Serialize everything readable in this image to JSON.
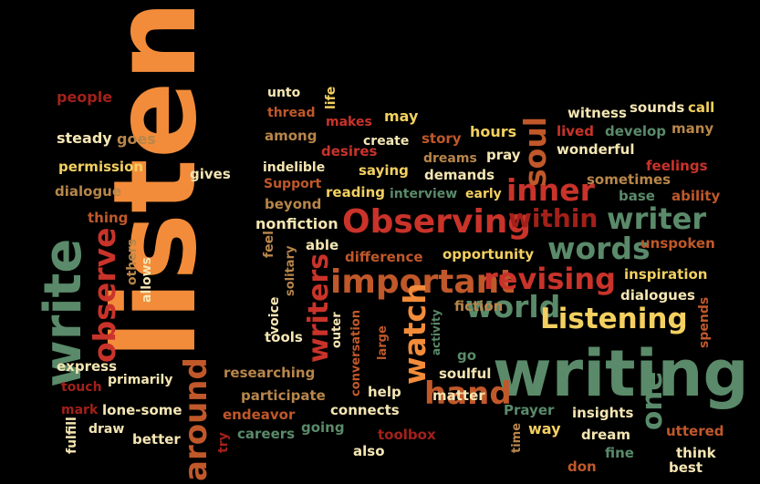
{
  "colors": {
    "background": "#000000",
    "orange": "#f28c3a",
    "dark_red": "#a3201a",
    "red": "#c9332a",
    "rust": "#c0582a",
    "green": "#5a8a6a",
    "light_green": "#7aa384",
    "cream": "#f5e6b3",
    "yellow": "#f3d060",
    "tan": "#b8864a"
  },
  "words": [
    {
      "text": "listen",
      "color": "orange",
      "orientation": "vertical"
    },
    {
      "text": "write",
      "color": "green",
      "orientation": "vertical"
    },
    {
      "text": "observe",
      "color": "red",
      "orientation": "vertical"
    },
    {
      "text": "around",
      "color": "rust",
      "orientation": "vertical"
    },
    {
      "text": "writing",
      "color": "green",
      "orientation": "horizontal"
    },
    {
      "text": "Observing",
      "color": "red",
      "orientation": "horizontal"
    },
    {
      "text": "important",
      "color": "rust",
      "orientation": "horizontal"
    },
    {
      "text": "writers",
      "color": "red",
      "orientation": "vertical"
    },
    {
      "text": "watch",
      "color": "orange",
      "orientation": "vertical"
    },
    {
      "text": "hand",
      "color": "rust",
      "orientation": "horizontal"
    },
    {
      "text": "world",
      "color": "green",
      "orientation": "horizontal"
    },
    {
      "text": "Listening",
      "color": "yellow",
      "orientation": "horizontal"
    },
    {
      "text": "revising",
      "color": "red",
      "orientation": "horizontal"
    },
    {
      "text": "words",
      "color": "green",
      "orientation": "horizontal"
    },
    {
      "text": "writer",
      "color": "green",
      "orientation": "horizontal"
    },
    {
      "text": "within",
      "color": "dark_red",
      "orientation": "horizontal"
    },
    {
      "text": "inner",
      "color": "red",
      "orientation": "horizontal"
    },
    {
      "text": "soul",
      "color": "rust",
      "orientation": "vertical"
    },
    {
      "text": "one",
      "color": "green",
      "orientation": "vertical"
    },
    {
      "text": "people",
      "color": "dark_red",
      "orientation": "horizontal"
    },
    {
      "text": "steady",
      "color": "cream",
      "orientation": "horizontal"
    },
    {
      "text": "goes",
      "color": "tan",
      "orientation": "horizontal"
    },
    {
      "text": "permission",
      "color": "yellow",
      "orientation": "horizontal"
    },
    {
      "text": "dialogue",
      "color": "tan",
      "orientation": "horizontal"
    },
    {
      "text": "thing",
      "color": "rust",
      "orientation": "horizontal"
    },
    {
      "text": "others",
      "color": "tan",
      "orientation": "vertical"
    },
    {
      "text": "allows",
      "color": "cream",
      "orientation": "vertical"
    },
    {
      "text": "express",
      "color": "cream",
      "orientation": "horizontal"
    },
    {
      "text": "touch",
      "color": "dark_red",
      "orientation": "horizontal"
    },
    {
      "text": "primarily",
      "color": "cream",
      "orientation": "horizontal"
    },
    {
      "text": "mark",
      "color": "dark_red",
      "orientation": "horizontal"
    },
    {
      "text": "lone-some",
      "color": "cream",
      "orientation": "horizontal"
    },
    {
      "text": "draw",
      "color": "cream",
      "orientation": "horizontal"
    },
    {
      "text": "fulfill",
      "color": "cream",
      "orientation": "vertical"
    },
    {
      "text": "better",
      "color": "cream",
      "orientation": "horizontal"
    },
    {
      "text": "gives",
      "color": "cream",
      "orientation": "horizontal"
    },
    {
      "text": "unto",
      "color": "cream",
      "orientation": "horizontal"
    },
    {
      "text": "life",
      "color": "yellow",
      "orientation": "vertical"
    },
    {
      "text": "thread",
      "color": "rust",
      "orientation": "horizontal"
    },
    {
      "text": "among",
      "color": "tan",
      "orientation": "horizontal"
    },
    {
      "text": "makes",
      "color": "red",
      "orientation": "horizontal"
    },
    {
      "text": "may",
      "color": "yellow",
      "orientation": "horizontal"
    },
    {
      "text": "desires",
      "color": "red",
      "orientation": "horizontal"
    },
    {
      "text": "create",
      "color": "cream",
      "orientation": "horizontal"
    },
    {
      "text": "story",
      "color": "rust",
      "orientation": "horizontal"
    },
    {
      "text": "hours",
      "color": "yellow",
      "orientation": "horizontal"
    },
    {
      "text": "indelible",
      "color": "cream",
      "orientation": "horizontal"
    },
    {
      "text": "saying",
      "color": "yellow",
      "orientation": "horizontal"
    },
    {
      "text": "dreams",
      "color": "tan",
      "orientation": "horizontal"
    },
    {
      "text": "pray",
      "color": "cream",
      "orientation": "horizontal"
    },
    {
      "text": "Support",
      "color": "rust",
      "orientation": "horizontal"
    },
    {
      "text": "demands",
      "color": "cream",
      "orientation": "horizontal"
    },
    {
      "text": "beyond",
      "color": "tan",
      "orientation": "horizontal"
    },
    {
      "text": "reading",
      "color": "yellow",
      "orientation": "horizontal"
    },
    {
      "text": "interview",
      "color": "green",
      "orientation": "horizontal"
    },
    {
      "text": "early",
      "color": "yellow",
      "orientation": "horizontal"
    },
    {
      "text": "nonfiction",
      "color": "cream",
      "orientation": "horizontal"
    },
    {
      "text": "feel",
      "color": "tan",
      "orientation": "vertical"
    },
    {
      "text": "solitary",
      "color": "tan",
      "orientation": "vertical"
    },
    {
      "text": "able",
      "color": "cream",
      "orientation": "horizontal"
    },
    {
      "text": "difference",
      "color": "rust",
      "orientation": "horizontal"
    },
    {
      "text": "opportunity",
      "color": "yellow",
      "orientation": "horizontal"
    },
    {
      "text": "voice",
      "color": "cream",
      "orientation": "vertical"
    },
    {
      "text": "tools",
      "color": "cream",
      "orientation": "horizontal"
    },
    {
      "text": "outer",
      "color": "cream",
      "orientation": "vertical"
    },
    {
      "text": "conversation",
      "color": "rust",
      "orientation": "vertical"
    },
    {
      "text": "large",
      "color": "rust",
      "orientation": "vertical"
    },
    {
      "text": "activity",
      "color": "green",
      "orientation": "vertical"
    },
    {
      "text": "fiction",
      "color": "tan",
      "orientation": "horizontal"
    },
    {
      "text": "go",
      "color": "green",
      "orientation": "horizontal"
    },
    {
      "text": "researching",
      "color": "tan",
      "orientation": "horizontal"
    },
    {
      "text": "participate",
      "color": "tan",
      "orientation": "horizontal"
    },
    {
      "text": "help",
      "color": "cream",
      "orientation": "horizontal"
    },
    {
      "text": "soulful",
      "color": "cream",
      "orientation": "horizontal"
    },
    {
      "text": "matter",
      "color": "cream",
      "orientation": "horizontal"
    },
    {
      "text": "endeavor",
      "color": "rust",
      "orientation": "horizontal"
    },
    {
      "text": "try",
      "color": "dark_red",
      "orientation": "vertical"
    },
    {
      "text": "careers",
      "color": "green",
      "orientation": "horizontal"
    },
    {
      "text": "going",
      "color": "green",
      "orientation": "horizontal"
    },
    {
      "text": "connects",
      "color": "cream",
      "orientation": "horizontal"
    },
    {
      "text": "also",
      "color": "cream",
      "orientation": "horizontal"
    },
    {
      "text": "toolbox",
      "color": "dark_red",
      "orientation": "horizontal"
    },
    {
      "text": "Prayer",
      "color": "green",
      "orientation": "horizontal"
    },
    {
      "text": "time",
      "color": "tan",
      "orientation": "vertical"
    },
    {
      "text": "way",
      "color": "yellow",
      "orientation": "horizontal"
    },
    {
      "text": "witness",
      "color": "cream",
      "orientation": "horizontal"
    },
    {
      "text": "sounds",
      "color": "cream",
      "orientation": "horizontal"
    },
    {
      "text": "call",
      "color": "yellow",
      "orientation": "horizontal"
    },
    {
      "text": "lived",
      "color": "red",
      "orientation": "horizontal"
    },
    {
      "text": "develop",
      "color": "green",
      "orientation": "horizontal"
    },
    {
      "text": "many",
      "color": "tan",
      "orientation": "horizontal"
    },
    {
      "text": "wonderful",
      "color": "cream",
      "orientation": "horizontal"
    },
    {
      "text": "sometimes",
      "color": "tan",
      "orientation": "horizontal"
    },
    {
      "text": "feelings",
      "color": "red",
      "orientation": "horizontal"
    },
    {
      "text": "base",
      "color": "green",
      "orientation": "horizontal"
    },
    {
      "text": "ability",
      "color": "rust",
      "orientation": "horizontal"
    },
    {
      "text": "unspoken",
      "color": "rust",
      "orientation": "horizontal"
    },
    {
      "text": "inspiration",
      "color": "yellow",
      "orientation": "horizontal"
    },
    {
      "text": "dialogues",
      "color": "cream",
      "orientation": "horizontal"
    },
    {
      "text": "spends",
      "color": "rust",
      "orientation": "vertical"
    },
    {
      "text": "insights",
      "color": "cream",
      "orientation": "horizontal"
    },
    {
      "text": "dream",
      "color": "cream",
      "orientation": "horizontal"
    },
    {
      "text": "uttered",
      "color": "rust",
      "orientation": "horizontal"
    },
    {
      "text": "fine",
      "color": "green",
      "orientation": "horizontal"
    },
    {
      "text": "think",
      "color": "cream",
      "orientation": "horizontal"
    },
    {
      "text": "don",
      "color": "rust",
      "orientation": "horizontal"
    },
    {
      "text": "best",
      "color": "cream",
      "orientation": "horizontal"
    }
  ]
}
